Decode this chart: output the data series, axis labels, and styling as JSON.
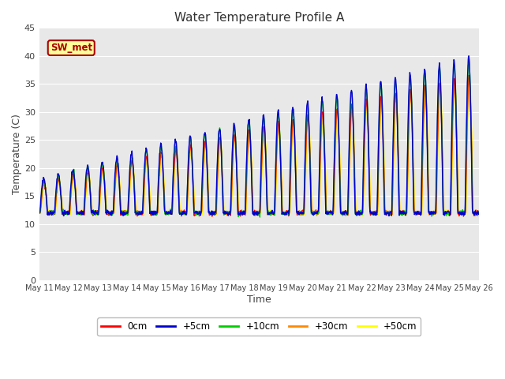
{
  "title": "Water Temperature Profile A",
  "xlabel": "Time",
  "ylabel": "Temperature (C)",
  "ylim": [
    0,
    45
  ],
  "yticks": [
    0,
    5,
    10,
    15,
    20,
    25,
    30,
    35,
    40,
    45
  ],
  "plot_bg_color": "#e8e8e8",
  "series_colors": {
    "0cm": "#ff0000",
    "+5cm": "#0000cc",
    "+10cm": "#00cc00",
    "+30cm": "#ff8800",
    "+50cm": "#ffff00"
  },
  "annotation_text": "SW_met",
  "annotation_bg": "#ffff99",
  "annotation_border": "#aa0000",
  "n_days": 15,
  "n_points": 1500
}
